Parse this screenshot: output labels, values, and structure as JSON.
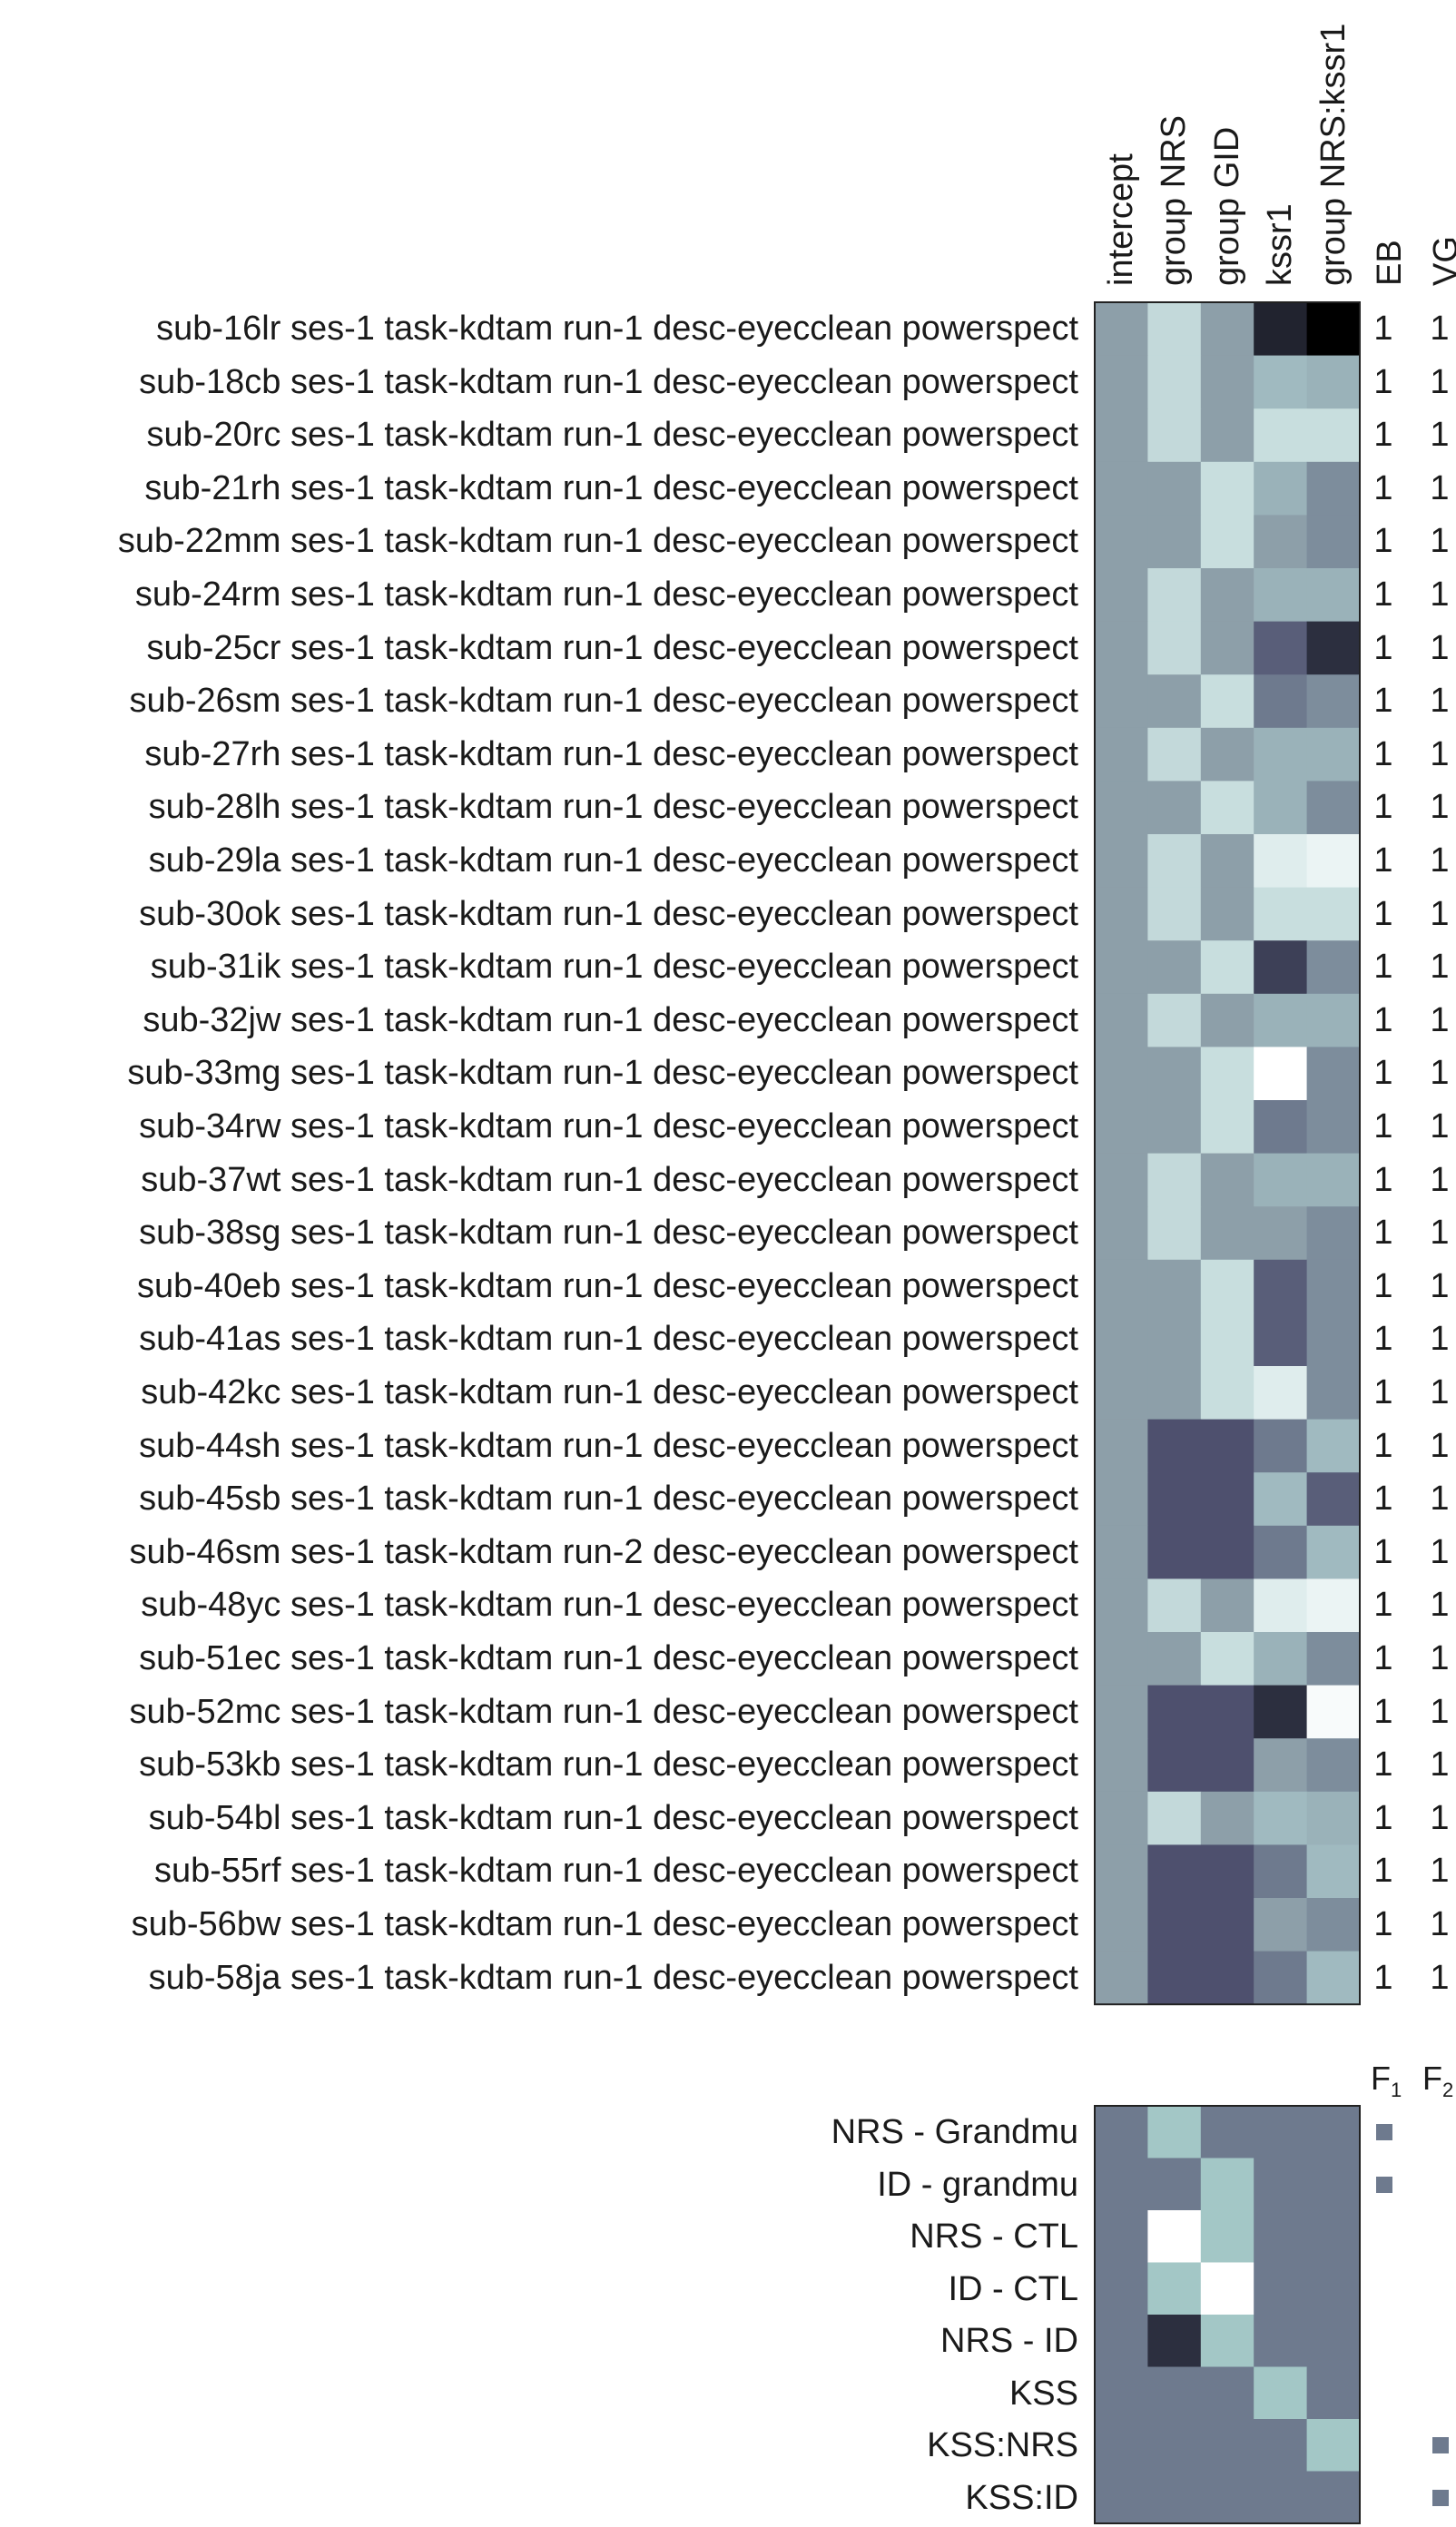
{
  "design": {
    "columns": [
      "intercept",
      "group NRS",
      "group GID",
      "kssr1",
      "group NRS:kssr1"
    ],
    "flag_columns": [
      "EB",
      "VG"
    ],
    "rows": [
      {
        "label": "sub-16lr ses-1 task-kdtam run-1 desc-eyecclean powerspect",
        "values": [
          0.55,
          0.78,
          0.55,
          0.15,
          0.0
        ],
        "eb": "1",
        "vg": "1"
      },
      {
        "label": "sub-18cb ses-1 task-kdtam run-1 desc-eyecclean powerspect",
        "values": [
          0.55,
          0.78,
          0.55,
          0.65,
          0.62
        ],
        "eb": "1",
        "vg": "1"
      },
      {
        "label": "sub-20rc ses-1 task-kdtam run-1 desc-eyecclean powerspect",
        "values": [
          0.55,
          0.78,
          0.55,
          0.8,
          0.8
        ],
        "eb": "1",
        "vg": "1"
      },
      {
        "label": "sub-21rh ses-1 task-kdtam run-1 desc-eyecclean powerspect",
        "values": [
          0.55,
          0.55,
          0.8,
          0.62,
          0.5
        ],
        "eb": "1",
        "vg": "1"
      },
      {
        "label": "sub-22mm ses-1 task-kdtam run-1 desc-eyecclean powerspect",
        "values": [
          0.55,
          0.55,
          0.8,
          0.55,
          0.5
        ],
        "eb": "1",
        "vg": "1"
      },
      {
        "label": "sub-24rm ses-1 task-kdtam run-1 desc-eyecclean powerspect",
        "values": [
          0.55,
          0.78,
          0.55,
          0.62,
          0.62
        ],
        "eb": "1",
        "vg": "1"
      },
      {
        "label": "sub-25cr ses-1 task-kdtam run-1 desc-eyecclean powerspect",
        "values": [
          0.55,
          0.78,
          0.55,
          0.35,
          0.2
        ],
        "eb": "1",
        "vg": "1"
      },
      {
        "label": "sub-26sm ses-1 task-kdtam run-1 desc-eyecclean powerspect",
        "values": [
          0.55,
          0.55,
          0.8,
          0.45,
          0.5
        ],
        "eb": "1",
        "vg": "1"
      },
      {
        "label": "sub-27rh ses-1 task-kdtam run-1 desc-eyecclean powerspect",
        "values": [
          0.55,
          0.78,
          0.55,
          0.62,
          0.62
        ],
        "eb": "1",
        "vg": "1"
      },
      {
        "label": "sub-28lh ses-1 task-kdtam run-1 desc-eyecclean powerspect",
        "values": [
          0.55,
          0.55,
          0.8,
          0.62,
          0.5
        ],
        "eb": "1",
        "vg": "1"
      },
      {
        "label": "sub-29la ses-1 task-kdtam run-1 desc-eyecclean powerspect",
        "values": [
          0.55,
          0.78,
          0.55,
          0.88,
          0.92
        ],
        "eb": "1",
        "vg": "1"
      },
      {
        "label": "sub-30ok ses-1 task-kdtam run-1 desc-eyecclean powerspect",
        "values": [
          0.55,
          0.78,
          0.55,
          0.8,
          0.8
        ],
        "eb": "1",
        "vg": "1"
      },
      {
        "label": "sub-31ik ses-1 task-kdtam run-1 desc-eyecclean powerspect",
        "values": [
          0.55,
          0.55,
          0.8,
          0.25,
          0.5
        ],
        "eb": "1",
        "vg": "1"
      },
      {
        "label": "sub-32jw ses-1 task-kdtam run-1 desc-eyecclean powerspect",
        "values": [
          0.55,
          0.78,
          0.55,
          0.62,
          0.62
        ],
        "eb": "1",
        "vg": "1"
      },
      {
        "label": "sub-33mg ses-1 task-kdtam run-1 desc-eyecclean powerspect",
        "values": [
          0.55,
          0.55,
          0.8,
          1.0,
          0.5
        ],
        "eb": "1",
        "vg": "1"
      },
      {
        "label": "sub-34rw ses-1 task-kdtam run-1 desc-eyecclean powerspect",
        "values": [
          0.55,
          0.55,
          0.8,
          0.45,
          0.5
        ],
        "eb": "1",
        "vg": "1"
      },
      {
        "label": "sub-37wt ses-1 task-kdtam run-1 desc-eyecclean powerspect",
        "values": [
          0.55,
          0.78,
          0.55,
          0.62,
          0.62
        ],
        "eb": "1",
        "vg": "1"
      },
      {
        "label": "sub-38sg ses-1 task-kdtam run-1 desc-eyecclean powerspect",
        "values": [
          0.55,
          0.78,
          0.55,
          0.55,
          0.5
        ],
        "eb": "1",
        "vg": "1"
      },
      {
        "label": "sub-40eb ses-1 task-kdtam run-1 desc-eyecclean powerspect",
        "values": [
          0.55,
          0.55,
          0.8,
          0.35,
          0.5
        ],
        "eb": "1",
        "vg": "1"
      },
      {
        "label": "sub-41as ses-1 task-kdtam run-1 desc-eyecclean powerspect",
        "values": [
          0.55,
          0.55,
          0.8,
          0.35,
          0.5
        ],
        "eb": "1",
        "vg": "1"
      },
      {
        "label": "sub-42kc ses-1 task-kdtam run-1 desc-eyecclean powerspect",
        "values": [
          0.55,
          0.55,
          0.8,
          0.88,
          0.5
        ],
        "eb": "1",
        "vg": "1"
      },
      {
        "label": "sub-44sh ses-1 task-kdtam run-1 desc-eyecclean powerspect",
        "values": [
          0.55,
          0.3,
          0.3,
          0.45,
          0.65
        ],
        "eb": "1",
        "vg": "1"
      },
      {
        "label": "sub-45sb ses-1 task-kdtam run-1 desc-eyecclean powerspect",
        "values": [
          0.55,
          0.3,
          0.3,
          0.65,
          0.35
        ],
        "eb": "1",
        "vg": "1"
      },
      {
        "label": "sub-46sm ses-1 task-kdtam run-2 desc-eyecclean powerspect",
        "values": [
          0.55,
          0.3,
          0.3,
          0.45,
          0.65
        ],
        "eb": "1",
        "vg": "1"
      },
      {
        "label": "sub-48yc ses-1 task-kdtam run-1 desc-eyecclean powerspect",
        "values": [
          0.55,
          0.78,
          0.55,
          0.88,
          0.92
        ],
        "eb": "1",
        "vg": "1"
      },
      {
        "label": "sub-51ec ses-1 task-kdtam run-1 desc-eyecclean powerspect",
        "values": [
          0.55,
          0.55,
          0.8,
          0.62,
          0.5
        ],
        "eb": "1",
        "vg": "1"
      },
      {
        "label": "sub-52mc ses-1 task-kdtam run-1 desc-eyecclean powerspect",
        "values": [
          0.55,
          0.3,
          0.3,
          0.2,
          0.97
        ],
        "eb": "1",
        "vg": "1"
      },
      {
        "label": "sub-53kb ses-1 task-kdtam run-1 desc-eyecclean powerspect",
        "values": [
          0.55,
          0.3,
          0.3,
          0.55,
          0.5
        ],
        "eb": "1",
        "vg": "1"
      },
      {
        "label": "sub-54bl ses-1 task-kdtam run-1 desc-eyecclean powerspect",
        "values": [
          0.55,
          0.78,
          0.55,
          0.65,
          0.62
        ],
        "eb": "1",
        "vg": "1"
      },
      {
        "label": "sub-55rf ses-1 task-kdtam run-1 desc-eyecclean powerspect",
        "values": [
          0.55,
          0.3,
          0.3,
          0.45,
          0.65
        ],
        "eb": "1",
        "vg": "1"
      },
      {
        "label": "sub-56bw ses-1 task-kdtam run-1 desc-eyecclean powerspect",
        "values": [
          0.55,
          0.3,
          0.3,
          0.55,
          0.5
        ],
        "eb": "1",
        "vg": "1"
      },
      {
        "label": "sub-58ja ses-1 task-kdtam run-1 desc-eyecclean powerspect",
        "values": [
          0.55,
          0.3,
          0.3,
          0.45,
          0.65
        ],
        "eb": "1",
        "vg": "1"
      }
    ]
  },
  "contrasts": {
    "f_columns": [
      {
        "base": "F",
        "sub": "1"
      },
      {
        "base": "F",
        "sub": "2"
      }
    ],
    "rows": [
      {
        "label": "NRS - Grandmu",
        "values": [
          0.45,
          0.7,
          0.45,
          0.45,
          0.45
        ],
        "f1": true,
        "f2": false
      },
      {
        "label": "ID - grandmu",
        "values": [
          0.45,
          0.45,
          0.7,
          0.45,
          0.45
        ],
        "f1": true,
        "f2": false
      },
      {
        "label": "NRS - CTL",
        "values": [
          0.45,
          1.0,
          0.7,
          0.45,
          0.45
        ],
        "f1": false,
        "f2": false
      },
      {
        "label": "ID - CTL",
        "values": [
          0.45,
          0.7,
          1.0,
          0.45,
          0.45
        ],
        "f1": false,
        "f2": false
      },
      {
        "label": "NRS - ID",
        "values": [
          0.45,
          0.2,
          0.7,
          0.45,
          0.45
        ],
        "f1": false,
        "f2": false
      },
      {
        "label": "KSS",
        "values": [
          0.45,
          0.45,
          0.45,
          0.7,
          0.45
        ],
        "f1": false,
        "f2": false
      },
      {
        "label": "KSS:NRS",
        "values": [
          0.45,
          0.45,
          0.45,
          0.45,
          0.7
        ],
        "f1": false,
        "f2": true
      },
      {
        "label": "KSS:ID",
        "values": [
          0.45,
          0.45,
          0.45,
          0.45,
          0.45
        ],
        "f1": false,
        "f2": true
      }
    ]
  },
  "colors": {
    "scale_low": "#000000",
    "scale_mid": "#8d9fa9",
    "scale_high": "#ffffff",
    "contrast_base": "#6e7a8e",
    "contrast_mid": "#a3c7c6",
    "contrast_low": "#2c2f3f",
    "f_marker": "#6e7a8e"
  }
}
